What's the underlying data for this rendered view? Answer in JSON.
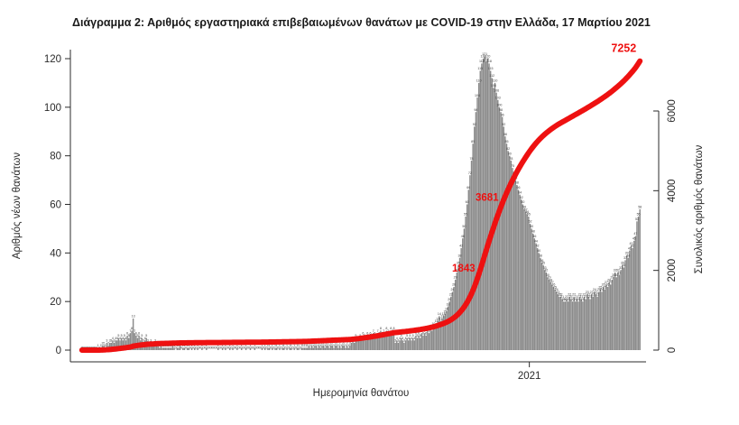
{
  "title": "Διάγραμμα 2: Αριθμός εργαστηριακά επιβεβαιωμένων θανάτων με COVID-19 στην Ελλάδα, 17 Μαρτίου 2021",
  "chart_data": {
    "type": "bar",
    "subtype": "daily bars with cumulative line overlay",
    "title": "Διάγραμμα 2: Αριθμός εργαστηριακά επιβεβαιωμένων θανάτων με COVID-19 στην Ελλάδα, 17 Μαρτίου 2021",
    "xlabel": "Ημερομηνία θανάτου",
    "ylabel_left": "Αριθμός νέων θανάτων",
    "ylabel_right": "Συνολικός αριθμός θανάτων",
    "x_start_date": "2020-03-01",
    "x_end_date": "2021-03-17",
    "left_axis": {
      "ticks": [
        0,
        20,
        40,
        60,
        80,
        100,
        120
      ],
      "range": [
        0,
        120
      ]
    },
    "right_axis": {
      "ticks": [
        0,
        2000,
        4000,
        6000
      ],
      "range": [
        0,
        7500
      ]
    },
    "x_axis": {
      "ticks": [
        {
          "label": "2021",
          "day_index": 306
        }
      ]
    },
    "daily_new_deaths": [
      0,
      0,
      0,
      0,
      0,
      0,
      0,
      0,
      0,
      0,
      0,
      1,
      0,
      1,
      2,
      2,
      1,
      3,
      2,
      3,
      3,
      4,
      3,
      4,
      4,
      5,
      4,
      5,
      4,
      5,
      4,
      6,
      5,
      7,
      8,
      13,
      7,
      6,
      5,
      6,
      4,
      5,
      3,
      4,
      5,
      3,
      2,
      3,
      2,
      2,
      3,
      2,
      2,
      1,
      2,
      1,
      1,
      1,
      1,
      1,
      1,
      1,
      2,
      1,
      0,
      1,
      1,
      2,
      0,
      1,
      1,
      0,
      1,
      1,
      0,
      1,
      0,
      1,
      0,
      1,
      0,
      0,
      1,
      0,
      0,
      1,
      0,
      0,
      0,
      0,
      0,
      0,
      0,
      1,
      0,
      0,
      1,
      0,
      1,
      0,
      0,
      1,
      0,
      1,
      0,
      0,
      1,
      0,
      0,
      1,
      0,
      0,
      1,
      0,
      0,
      1,
      0,
      0,
      1,
      0,
      0,
      0,
      0,
      1,
      0,
      1,
      0,
      1,
      1,
      0,
      1,
      0,
      1,
      1,
      0,
      1,
      0,
      1,
      1,
      0,
      1,
      0,
      1,
      1,
      0,
      1,
      0,
      1,
      1,
      0,
      1,
      1,
      1,
      1,
      1,
      2,
      1,
      2,
      1,
      2,
      2,
      1,
      2,
      1,
      2,
      2,
      1,
      2,
      2,
      1,
      2,
      2,
      1,
      2,
      2,
      1,
      2,
      1,
      2,
      2,
      1,
      2,
      1,
      2,
      3,
      4,
      3,
      5,
      4,
      4,
      5,
      4,
      6,
      5,
      4,
      6,
      5,
      6,
      5,
      7,
      6,
      5,
      7,
      6,
      8,
      6,
      7,
      6,
      8,
      7,
      6,
      8,
      7,
      8,
      3,
      4,
      3,
      4,
      5,
      4,
      3,
      4,
      5,
      4,
      5,
      4,
      5,
      4,
      6,
      5,
      6,
      5,
      7,
      6,
      7,
      6,
      8,
      7,
      9,
      8,
      10,
      9,
      11,
      12,
      14,
      12,
      13,
      14,
      15,
      16,
      18,
      20,
      22,
      24,
      26,
      29,
      32,
      35,
      38,
      42,
      46,
      50,
      55,
      60,
      66,
      72,
      78,
      85,
      92,
      98,
      104,
      110,
      115,
      118,
      120,
      121,
      119,
      120,
      118,
      115,
      112,
      108,
      110,
      106,
      103,
      100,
      98,
      96,
      92,
      88,
      85,
      82,
      80,
      78,
      75,
      72,
      70,
      68,
      66,
      64,
      62,
      60,
      58,
      57,
      56,
      55,
      52,
      50,
      48,
      46,
      44,
      42,
      40,
      38,
      36,
      35,
      33,
      32,
      30,
      29,
      28,
      27,
      26,
      25,
      24,
      23,
      22,
      22,
      21,
      20,
      20,
      21,
      20,
      22,
      21,
      20,
      22,
      20,
      21,
      20,
      22,
      21,
      20,
      22,
      21,
      23,
      22,
      21,
      23,
      22,
      24,
      23,
      22,
      24,
      25,
      24,
      26,
      25,
      27,
      26,
      28,
      27,
      29,
      30,
      32,
      30,
      32,
      31,
      33,
      35,
      34,
      37,
      39,
      38,
      41,
      43,
      42,
      45,
      47,
      53,
      55,
      58
    ],
    "cumulative_total_final": 7252,
    "annotations": [
      {
        "label": "1843",
        "value": 1843
      },
      {
        "label": "3681",
        "value": 3681
      },
      {
        "label": "7252",
        "value": 7252
      }
    ],
    "colors": {
      "bar": "#8b8b8b",
      "bar_value_label": "#3c3c3c",
      "cumulative_line": "#ee1111",
      "annotation_text": "#ee1111",
      "axis": "#2b2b2b"
    },
    "legend_position": "none",
    "grid": false
  }
}
